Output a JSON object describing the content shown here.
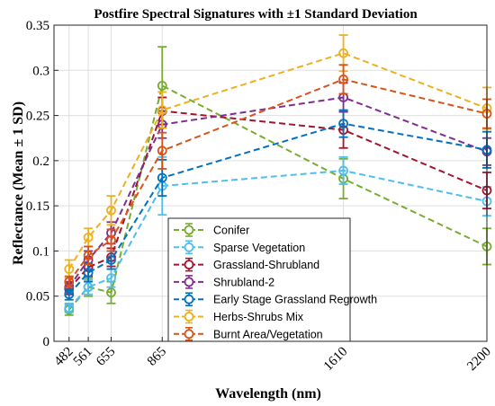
{
  "chart_data": {
    "type": "line",
    "title": "Postfire Spectral Signatures with ±1 Standard Deviation",
    "xlabel": "Wavelength (nm)",
    "ylabel": "Reflectance (Mean ± 1 SD)",
    "x": [
      482,
      561,
      655,
      865,
      1610,
      2200
    ],
    "x_tick_labels": [
      "482",
      "561",
      "655",
      "865",
      "1610",
      "2200"
    ],
    "xlim": [
      420,
      2200
    ],
    "ylim": [
      0,
      0.35
    ],
    "y_ticks": [
      0,
      0.05,
      0.1,
      0.15,
      0.2,
      0.25,
      0.3,
      0.35
    ],
    "y_tick_labels": [
      "0",
      "0.05",
      "0.1",
      "0.15",
      "0.2",
      "0.25",
      "0.3",
      "0.35"
    ],
    "grid": true,
    "legend_position": "bottom-center",
    "series": [
      {
        "name": "Conifer",
        "color": "#77ac30",
        "values": [
          0.035,
          0.06,
          0.054,
          0.283,
          0.18,
          0.105
        ],
        "errors": [
          0.006,
          0.01,
          0.012,
          0.043,
          0.022,
          0.02
        ]
      },
      {
        "name": "Sparse Vegetation",
        "color": "#4dbeee",
        "values": [
          0.037,
          0.06,
          0.07,
          0.172,
          0.189,
          0.155
        ],
        "errors": [
          0.005,
          0.008,
          0.01,
          0.032,
          0.015,
          0.016
        ]
      },
      {
        "name": "Grassland-Shrubland",
        "color": "#a2142f",
        "values": [
          0.058,
          0.082,
          0.093,
          0.255,
          0.234,
          0.167
        ],
        "errors": [
          0.006,
          0.01,
          0.01,
          0.015,
          0.02,
          0.02
        ]
      },
      {
        "name": "Shrubland-2",
        "color": "#7e2f8e",
        "values": [
          0.06,
          0.09,
          0.12,
          0.24,
          0.27,
          0.21
        ],
        "errors": [
          0.006,
          0.01,
          0.012,
          0.015,
          0.016,
          0.015
        ]
      },
      {
        "name": "Early Stage Grassland Regrowth",
        "color": "#0072bd",
        "values": [
          0.052,
          0.076,
          0.09,
          0.181,
          0.241,
          0.212
        ],
        "errors": [
          0.006,
          0.01,
          0.01,
          0.02,
          0.015,
          0.02
        ]
      },
      {
        "name": "Herbs-Shrubs Mix",
        "color": "#edb120",
        "values": [
          0.08,
          0.115,
          0.145,
          0.256,
          0.319,
          0.258
        ],
        "errors": [
          0.01,
          0.01,
          0.016,
          0.02,
          0.02,
          0.023
        ]
      },
      {
        "name": "Burnt Area/Vegetation",
        "color": "#d95319",
        "values": [
          0.066,
          0.095,
          0.112,
          0.211,
          0.29,
          0.252
        ],
        "errors": [
          0.006,
          0.01,
          0.012,
          0.02,
          0.016,
          0.016
        ]
      }
    ]
  }
}
